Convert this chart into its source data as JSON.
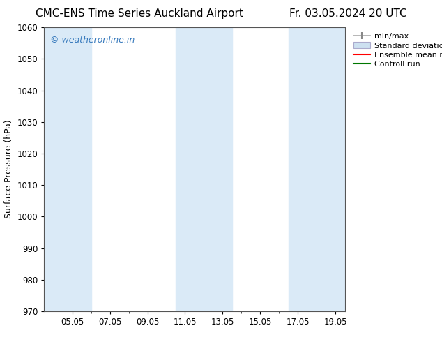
{
  "title_left": "CMC-ENS Time Series Auckland Airport",
  "title_right": "Fr. 03.05.2024 20 UTC",
  "ylabel": "Surface Pressure (hPa)",
  "ylim": [
    970,
    1060
  ],
  "yticks": [
    970,
    980,
    990,
    1000,
    1010,
    1020,
    1030,
    1040,
    1050,
    1060
  ],
  "xlim_start": 3.5,
  "xlim_end": 19.5,
  "xtick_labels": [
    "05.05",
    "07.05",
    "09.05",
    "11.05",
    "13.05",
    "15.05",
    "17.05",
    "19.05"
  ],
  "xtick_positions": [
    5,
    7,
    9,
    11,
    13,
    15,
    17,
    19
  ],
  "shaded_bands": [
    {
      "x_start": 3.5,
      "x_end": 6.0
    },
    {
      "x_start": 10.5,
      "x_end": 13.5
    },
    {
      "x_start": 16.5,
      "x_end": 19.5
    }
  ],
  "band_color": "#daeaf7",
  "background_color": "#ffffff",
  "plot_bg_color": "#ffffff",
  "watermark_text": "© weatheronline.in",
  "watermark_color": "#3377bb",
  "legend_labels": [
    "min/max",
    "Standard deviation",
    "Ensemble mean run",
    "Controll run"
  ],
  "title_fontsize": 11,
  "axis_label_fontsize": 9,
  "tick_fontsize": 8.5,
  "legend_fontsize": 8,
  "watermark_fontsize": 9
}
